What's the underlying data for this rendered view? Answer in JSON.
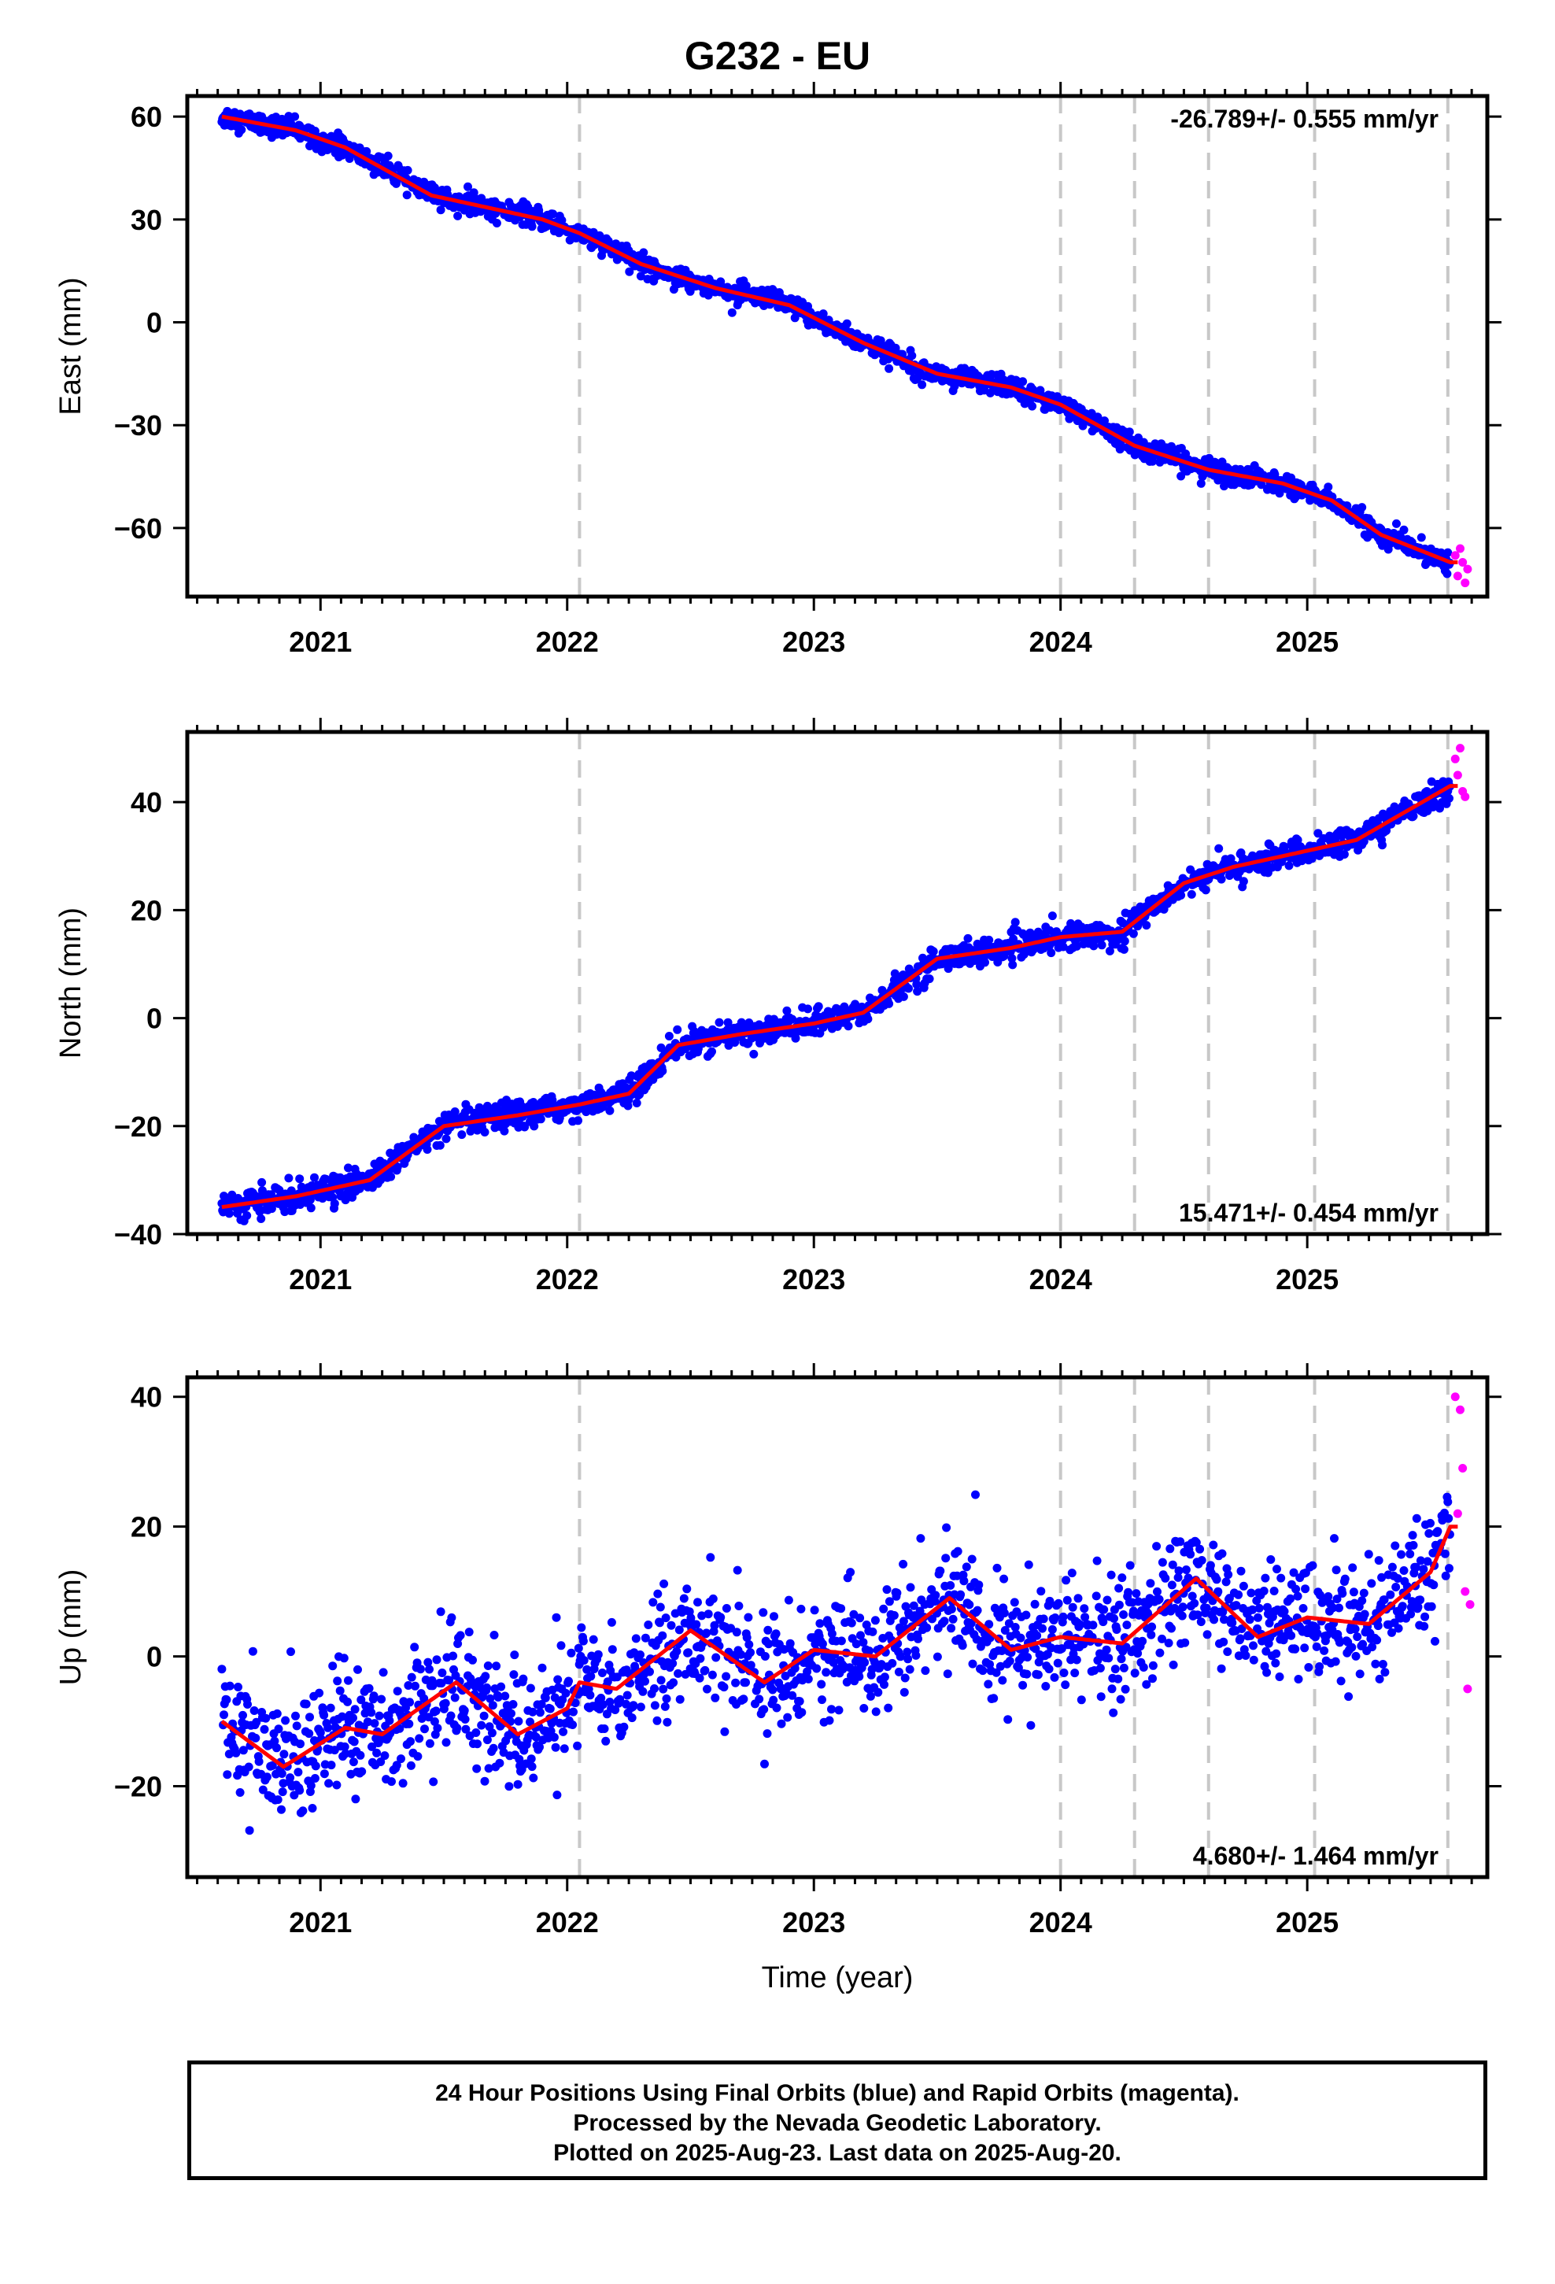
{
  "title": "G232 - EU",
  "footer": {
    "line1": "24 Hour Positions Using Final Orbits (blue) and Rapid Orbits (magenta).",
    "line2": "Processed by the Nevada Geodetic Laboratory.",
    "line3": "Plotted on 2025-Aug-23. Last data on 2025-Aug-20."
  },
  "colors": {
    "final_points": "#0000ff",
    "rapid_points": "#ff00ff",
    "model_line": "#ff0000",
    "event_lines": "#c8c8c8"
  },
  "chart_data": [
    {
      "type": "scatter",
      "ylabel": "East (mm)",
      "xlabel": "",
      "xlim": [
        2020.46,
        2025.73
      ],
      "ylim": [
        -80,
        66
      ],
      "x_ticks": [
        2021,
        2022,
        2023,
        2024,
        2025
      ],
      "y_ticks": [
        60,
        30,
        0,
        -30,
        -60
      ],
      "y_tick_labels": [
        "60",
        "30",
        "0",
        "−30",
        "−60"
      ],
      "event_lines_x": [
        2022.05,
        2024.0,
        2024.3,
        2024.6,
        2025.03,
        2025.57
      ],
      "rate_label": "-26.789+/- 0.555 mm/yr",
      "rate_label_position": "top-right",
      "final_series": {
        "x_range": [
          2020.6,
          2025.58
        ],
        "noise_mm": 1.5,
        "trend": {
          "x": [
            2020.6,
            2020.9,
            2021.1,
            2021.45,
            2021.9,
            2022.05,
            2022.3,
            2022.6,
            2022.9,
            2023.2,
            2023.5,
            2023.8,
            2024.0,
            2024.3,
            2024.6,
            2024.9,
            2025.1,
            2025.3,
            2025.58
          ],
          "y": [
            60,
            56,
            51,
            37,
            30,
            26,
            17,
            10,
            5,
            -6,
            -15,
            -19,
            -24,
            -36,
            -43,
            -47,
            -52,
            -62,
            -70
          ]
        }
      },
      "rapid_series": {
        "x": [
          2025.6,
          2025.61,
          2025.62,
          2025.63,
          2025.64,
          2025.65
        ],
        "y": [
          -68,
          -74,
          -66,
          -70,
          -76,
          -72
        ]
      }
    },
    {
      "type": "scatter",
      "ylabel": "North (mm)",
      "xlabel": "",
      "xlim": [
        2020.46,
        2025.73
      ],
      "ylim": [
        -40,
        53
      ],
      "x_ticks": [
        2021,
        2022,
        2023,
        2024,
        2025
      ],
      "y_ticks": [
        40,
        20,
        0,
        -20,
        -40
      ],
      "y_tick_labels": [
        "40",
        "20",
        "0",
        "−20",
        "−40"
      ],
      "event_lines_x": [
        2022.05,
        2024.0,
        2024.3,
        2024.6,
        2025.03,
        2025.57
      ],
      "rate_label": "15.471+/- 0.454 mm/yr",
      "rate_label_position": "bottom-right",
      "final_series": {
        "x_range": [
          2020.6,
          2025.58
        ],
        "noise_mm": 1.2,
        "trend": {
          "x": [
            2020.6,
            2020.9,
            2021.2,
            2021.5,
            2021.8,
            2022.05,
            2022.25,
            2022.45,
            2022.7,
            2023.0,
            2023.2,
            2023.5,
            2023.8,
            2024.0,
            2024.25,
            2024.5,
            2024.7,
            2025.0,
            2025.2,
            2025.58
          ],
          "y": [
            -35,
            -33,
            -30,
            -20,
            -18,
            -16,
            -14,
            -5,
            -3,
            -1,
            1,
            11,
            13,
            15,
            16,
            25,
            28,
            31,
            33,
            43
          ]
        }
      },
      "rapid_series": {
        "x": [
          2025.6,
          2025.61,
          2025.62,
          2025.63,
          2025.64
        ],
        "y": [
          48,
          45,
          50,
          42,
          41
        ]
      }
    },
    {
      "type": "scatter",
      "ylabel": "Up (mm)",
      "xlabel": "Time (year)",
      "xlim": [
        2020.46,
        2025.73
      ],
      "ylim": [
        -34,
        43
      ],
      "x_ticks": [
        2021,
        2022,
        2023,
        2024,
        2025
      ],
      "y_ticks": [
        40,
        20,
        0,
        -20
      ],
      "y_tick_labels": [
        "40",
        "20",
        "0",
        "−20"
      ],
      "event_lines_x": [
        2022.05,
        2024.0,
        2024.3,
        2024.6,
        2025.03,
        2025.57
      ],
      "rate_label": "4.680+/- 1.464 mm/yr",
      "rate_label_position": "bottom-right",
      "final_series": {
        "x_range": [
          2020.6,
          2025.58
        ],
        "noise_mm": 4.5,
        "trend": {
          "x": [
            2020.6,
            2020.85,
            2021.1,
            2021.25,
            2021.55,
            2021.8,
            2022.0,
            2022.05,
            2022.2,
            2022.5,
            2022.8,
            2023.0,
            2023.25,
            2023.55,
            2023.8,
            2024.0,
            2024.25,
            2024.55,
            2024.8,
            2025.0,
            2025.25,
            2025.5,
            2025.58
          ],
          "y": [
            -10,
            -17,
            -11,
            -12,
            -4,
            -12,
            -8,
            -4,
            -5,
            4,
            -4,
            1,
            0,
            9,
            1,
            3,
            2,
            12,
            3,
            6,
            5,
            13,
            20
          ]
        }
      },
      "rapid_series": {
        "x": [
          2025.6,
          2025.61,
          2025.62,
          2025.63,
          2025.64,
          2025.65,
          2025.66
        ],
        "y": [
          40,
          22,
          38,
          29,
          10,
          -5,
          8
        ]
      }
    }
  ]
}
